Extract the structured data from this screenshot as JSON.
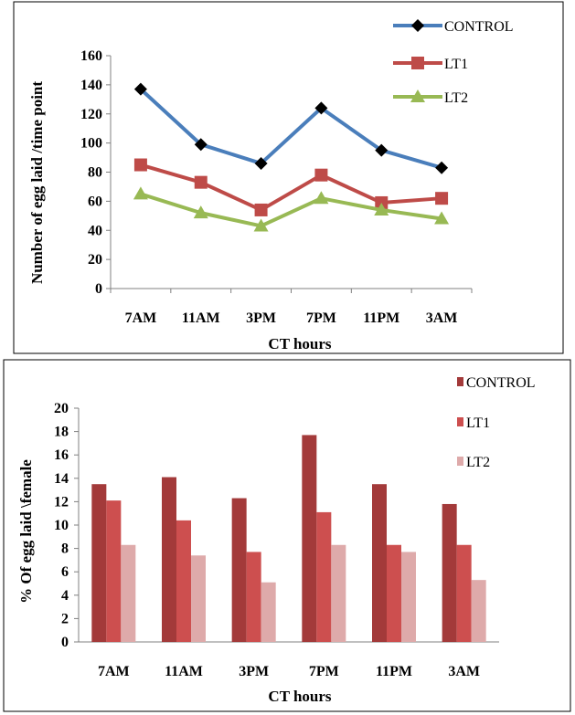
{
  "chart_data": [
    {
      "type": "line",
      "xlabel": "CT hours",
      "ylabel": "Number of egg laid /time point",
      "categories": [
        "7AM",
        "11AM",
        "3PM",
        "7PM",
        "11PM",
        "3AM"
      ],
      "ylim": [
        0,
        160
      ],
      "yticks": [
        0,
        20,
        40,
        60,
        80,
        100,
        120,
        140,
        160
      ],
      "grid": false,
      "legend_position": "top-right",
      "series": [
        {
          "name": "CONTROL",
          "values": [
            137,
            99,
            86,
            124,
            95,
            83
          ],
          "color": "#4a7ebb",
          "marker": "diamond",
          "marker_color": "#000000"
        },
        {
          "name": "LT1",
          "values": [
            85,
            73,
            54,
            78,
            59,
            62
          ],
          "color": "#be4b48",
          "marker": "square",
          "marker_color": "#be4b48"
        },
        {
          "name": "LT2",
          "values": [
            65,
            52,
            43,
            62,
            54,
            48
          ],
          "color": "#98b954",
          "marker": "triangle",
          "marker_color": "#98b954"
        }
      ]
    },
    {
      "type": "bar",
      "xlabel": "CT hours",
      "ylabel": "% Of  egg laid \\female",
      "categories": [
        "7AM",
        "11AM",
        "3PM",
        "7PM",
        "11PM",
        "3AM"
      ],
      "ylim": [
        0,
        20
      ],
      "yticks": [
        0,
        2,
        4,
        6,
        8,
        10,
        12,
        14,
        16,
        18,
        20
      ],
      "grid": false,
      "legend_position": "top-right",
      "series": [
        {
          "name": "CONTROL",
          "values": [
            13.5,
            14.1,
            12.3,
            17.7,
            13.5,
            11.8
          ],
          "color": "#a33a3a"
        },
        {
          "name": "LT1",
          "values": [
            12.1,
            10.4,
            7.7,
            11.1,
            8.3,
            8.3
          ],
          "color": "#cd4f4f"
        },
        {
          "name": "LT2",
          "values": [
            8.3,
            7.4,
            5.1,
            8.3,
            7.7,
            5.3
          ],
          "color": "#deaaaa"
        }
      ]
    }
  ]
}
